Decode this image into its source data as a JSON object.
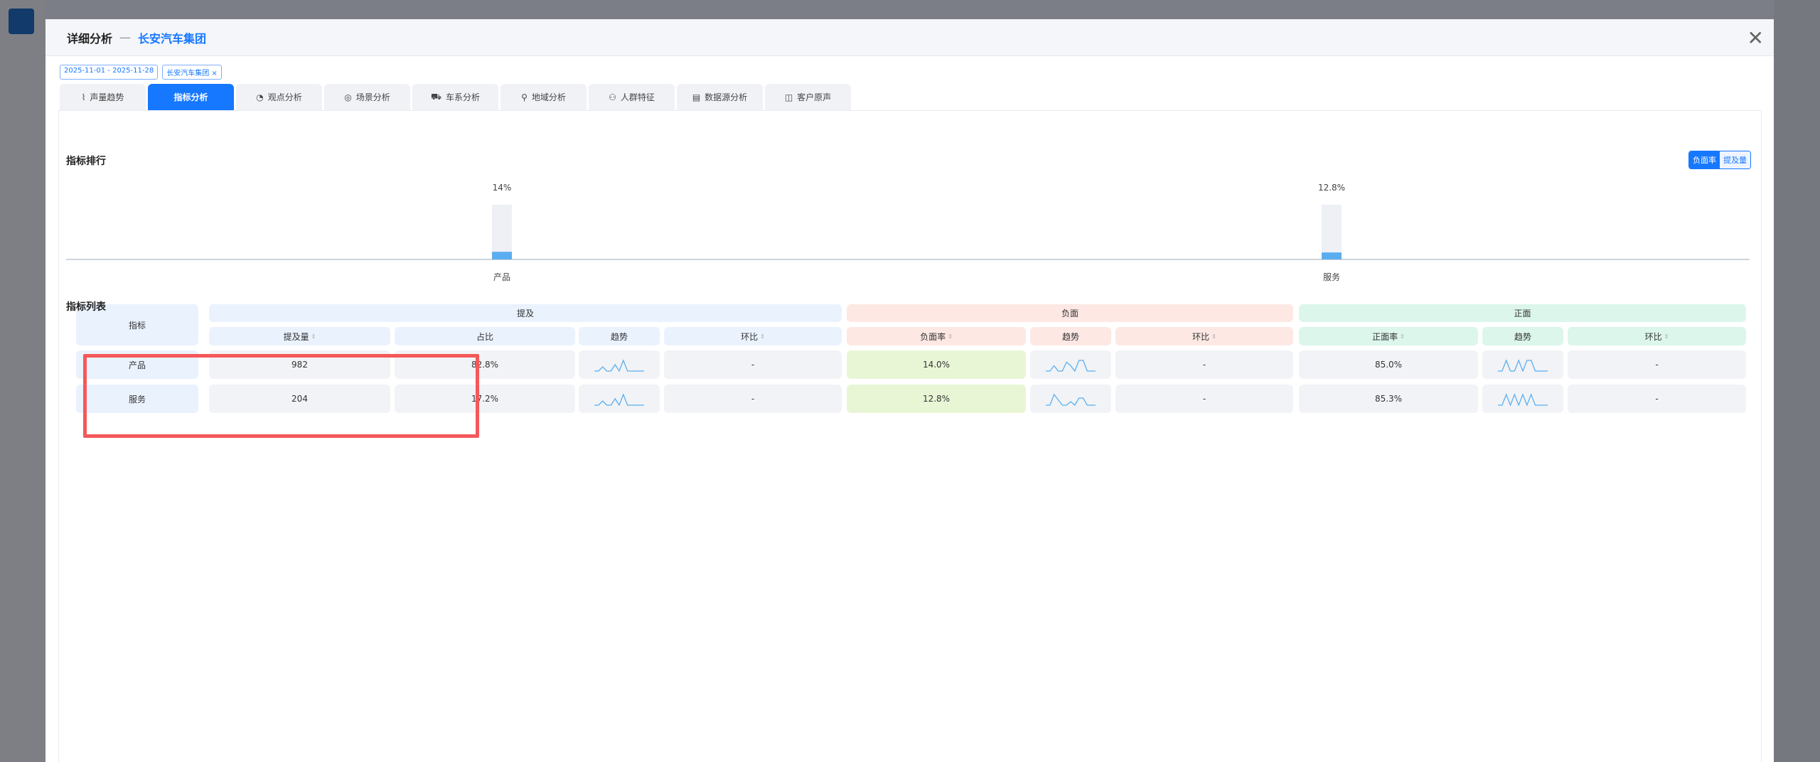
{
  "modal": {
    "title": "详细分析",
    "separator": "—",
    "subtitle": "长安汽车集团",
    "close_icon": "close-icon"
  },
  "filters": {
    "date_range": "2025-11-01 - 2025-11-28",
    "group_tag": "长安汽车集团",
    "remove": "×"
  },
  "tabs": [
    {
      "label": "声量趋势",
      "icon": "line-chart-icon"
    },
    {
      "label": "指标分析",
      "icon": "",
      "active": true
    },
    {
      "label": "观点分析",
      "icon": "opinion-icon"
    },
    {
      "label": "场景分析",
      "icon": "scene-icon"
    },
    {
      "label": "车系分析",
      "icon": "car-icon"
    },
    {
      "label": "地域分析",
      "icon": "location-icon"
    },
    {
      "label": "人群特征",
      "icon": "people-icon"
    },
    {
      "label": "数据源分析",
      "icon": "datasource-icon"
    },
    {
      "label": "客户原声",
      "icon": "voice-icon"
    }
  ],
  "ranking": {
    "title": "指标排行",
    "toggle": [
      "负面率",
      "提及量"
    ],
    "selected": "负面率"
  },
  "chart_data": {
    "type": "bar",
    "categories": [
      "产品",
      "服务"
    ],
    "values": [
      14,
      12.8
    ],
    "data_labels": [
      "14%",
      "12.8%"
    ],
    "ylim": [
      0,
      100
    ],
    "grid": false,
    "colors": {
      "bar": "#5aaef0",
      "track": "#eef0f6"
    }
  },
  "list": {
    "title": "指标列表",
    "group_headers": {
      "indicator": "指标",
      "mention": "提及",
      "negative": "负面",
      "positive": "正面"
    },
    "columns": {
      "mention_count": "提及量",
      "share": "占比",
      "trend": "趋势",
      "mom": "环比",
      "neg_rate": "负面率",
      "pos_rate": "正面率"
    },
    "rows": [
      {
        "name": "产品",
        "mention_count": "982",
        "share": "82.8%",
        "mom1": "-",
        "neg_rate": "14.0%",
        "mom2": "-",
        "pos_rate": "85.0%",
        "mom3": "-",
        "trend_mention": [
          0,
          0,
          2,
          0,
          0,
          3,
          0,
          5,
          0,
          0,
          0,
          0,
          0
        ],
        "trend_neg": [
          0,
          0,
          3,
          0,
          0,
          5,
          3,
          0,
          6,
          6,
          0,
          0,
          0
        ],
        "trend_pos": [
          0,
          0,
          7,
          0,
          0,
          7,
          0,
          7,
          7,
          0,
          0,
          0,
          0
        ]
      },
      {
        "name": "服务",
        "mention_count": "204",
        "share": "17.2%",
        "mom1": "-",
        "neg_rate": "12.8%",
        "mom2": "-",
        "pos_rate": "85.3%",
        "mom3": "-",
        "trend_mention": [
          0,
          0,
          2,
          0,
          0,
          3,
          0,
          5,
          0,
          0,
          0,
          0,
          0
        ],
        "trend_neg": [
          0,
          0,
          6,
          3,
          0,
          0,
          2,
          0,
          4,
          4,
          0,
          0,
          0
        ],
        "trend_pos": [
          0,
          0,
          7,
          0,
          7,
          0,
          7,
          0,
          7,
          0,
          0,
          0,
          0
        ]
      }
    ]
  },
  "colors": {
    "primary": "#1677ff",
    "highlight_box": "#f5585a",
    "sparkline": "#5aaef0"
  }
}
